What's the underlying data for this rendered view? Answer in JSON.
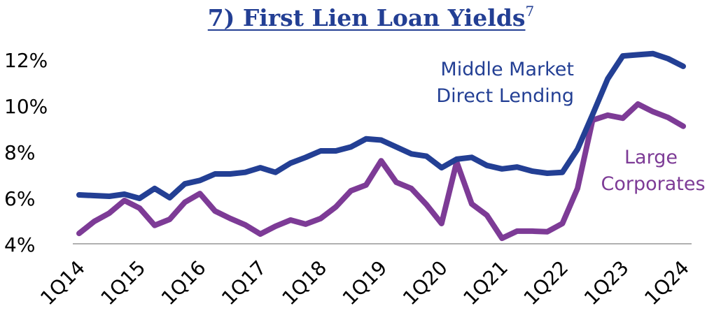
{
  "chart_data": {
    "type": "line",
    "title": "7) First Lien Loan Yields",
    "title_superscript": "7",
    "xlabel": "",
    "ylabel": "",
    "ylim": [
      4,
      12.5
    ],
    "yticks": [
      "4%",
      "6%",
      "8%",
      "10%",
      "12%"
    ],
    "ytick_values": [
      4,
      6,
      8,
      10,
      12
    ],
    "grid": false,
    "x": [
      "1Q14",
      "2Q14",
      "3Q14",
      "4Q14",
      "1Q15",
      "2Q15",
      "3Q15",
      "4Q15",
      "1Q16",
      "2Q16",
      "3Q16",
      "4Q16",
      "1Q17",
      "2Q17",
      "3Q17",
      "4Q17",
      "1Q18",
      "2Q18",
      "3Q18",
      "4Q18",
      "1Q19",
      "2Q19",
      "3Q19",
      "4Q19",
      "1Q20",
      "2Q20",
      "3Q20",
      "4Q20",
      "1Q21",
      "2Q21",
      "3Q21",
      "4Q21",
      "1Q22",
      "2Q22",
      "3Q22",
      "4Q22",
      "1Q23",
      "2Q23",
      "3Q23",
      "4Q23",
      "1Q24"
    ],
    "xticks": [
      "1Q14",
      "1Q15",
      "1Q16",
      "1Q17",
      "1Q18",
      "1Q19",
      "1Q20",
      "1Q21",
      "1Q22",
      "1Q23",
      "1Q24"
    ],
    "series": [
      {
        "name": "Middle Market Direct Lending",
        "color": "#233f94",
        "values": [
          6.12,
          6.09,
          6.06,
          6.15,
          5.97,
          6.4,
          6.0,
          6.6,
          6.75,
          7.03,
          7.03,
          7.1,
          7.3,
          7.1,
          7.5,
          7.75,
          8.03,
          8.03,
          8.2,
          8.55,
          8.5,
          8.2,
          7.9,
          7.8,
          7.3,
          7.67,
          7.75,
          7.4,
          7.25,
          7.33,
          7.15,
          7.06,
          7.1,
          8.1,
          9.6,
          11.15,
          12.15,
          12.2,
          12.25,
          12.03,
          11.7
        ]
      },
      {
        "name": "Large Corporates",
        "color": "#7d3b96",
        "values": [
          4.45,
          4.97,
          5.33,
          5.88,
          5.55,
          4.8,
          5.06,
          5.8,
          6.18,
          5.42,
          5.1,
          4.82,
          4.42,
          4.76,
          5.03,
          4.85,
          5.1,
          5.6,
          6.3,
          6.55,
          7.6,
          6.67,
          6.4,
          5.7,
          4.88,
          7.55,
          5.73,
          5.24,
          4.24,
          4.55,
          4.55,
          4.52,
          4.88,
          6.4,
          9.36,
          9.58,
          9.45,
          10.06,
          9.73,
          9.48,
          9.1
        ]
      }
    ],
    "labels": {
      "mm_line1": "Middle Market",
      "mm_line2": "Direct Lending",
      "lc_line1": "Large",
      "lc_line2": "Corporates"
    }
  }
}
